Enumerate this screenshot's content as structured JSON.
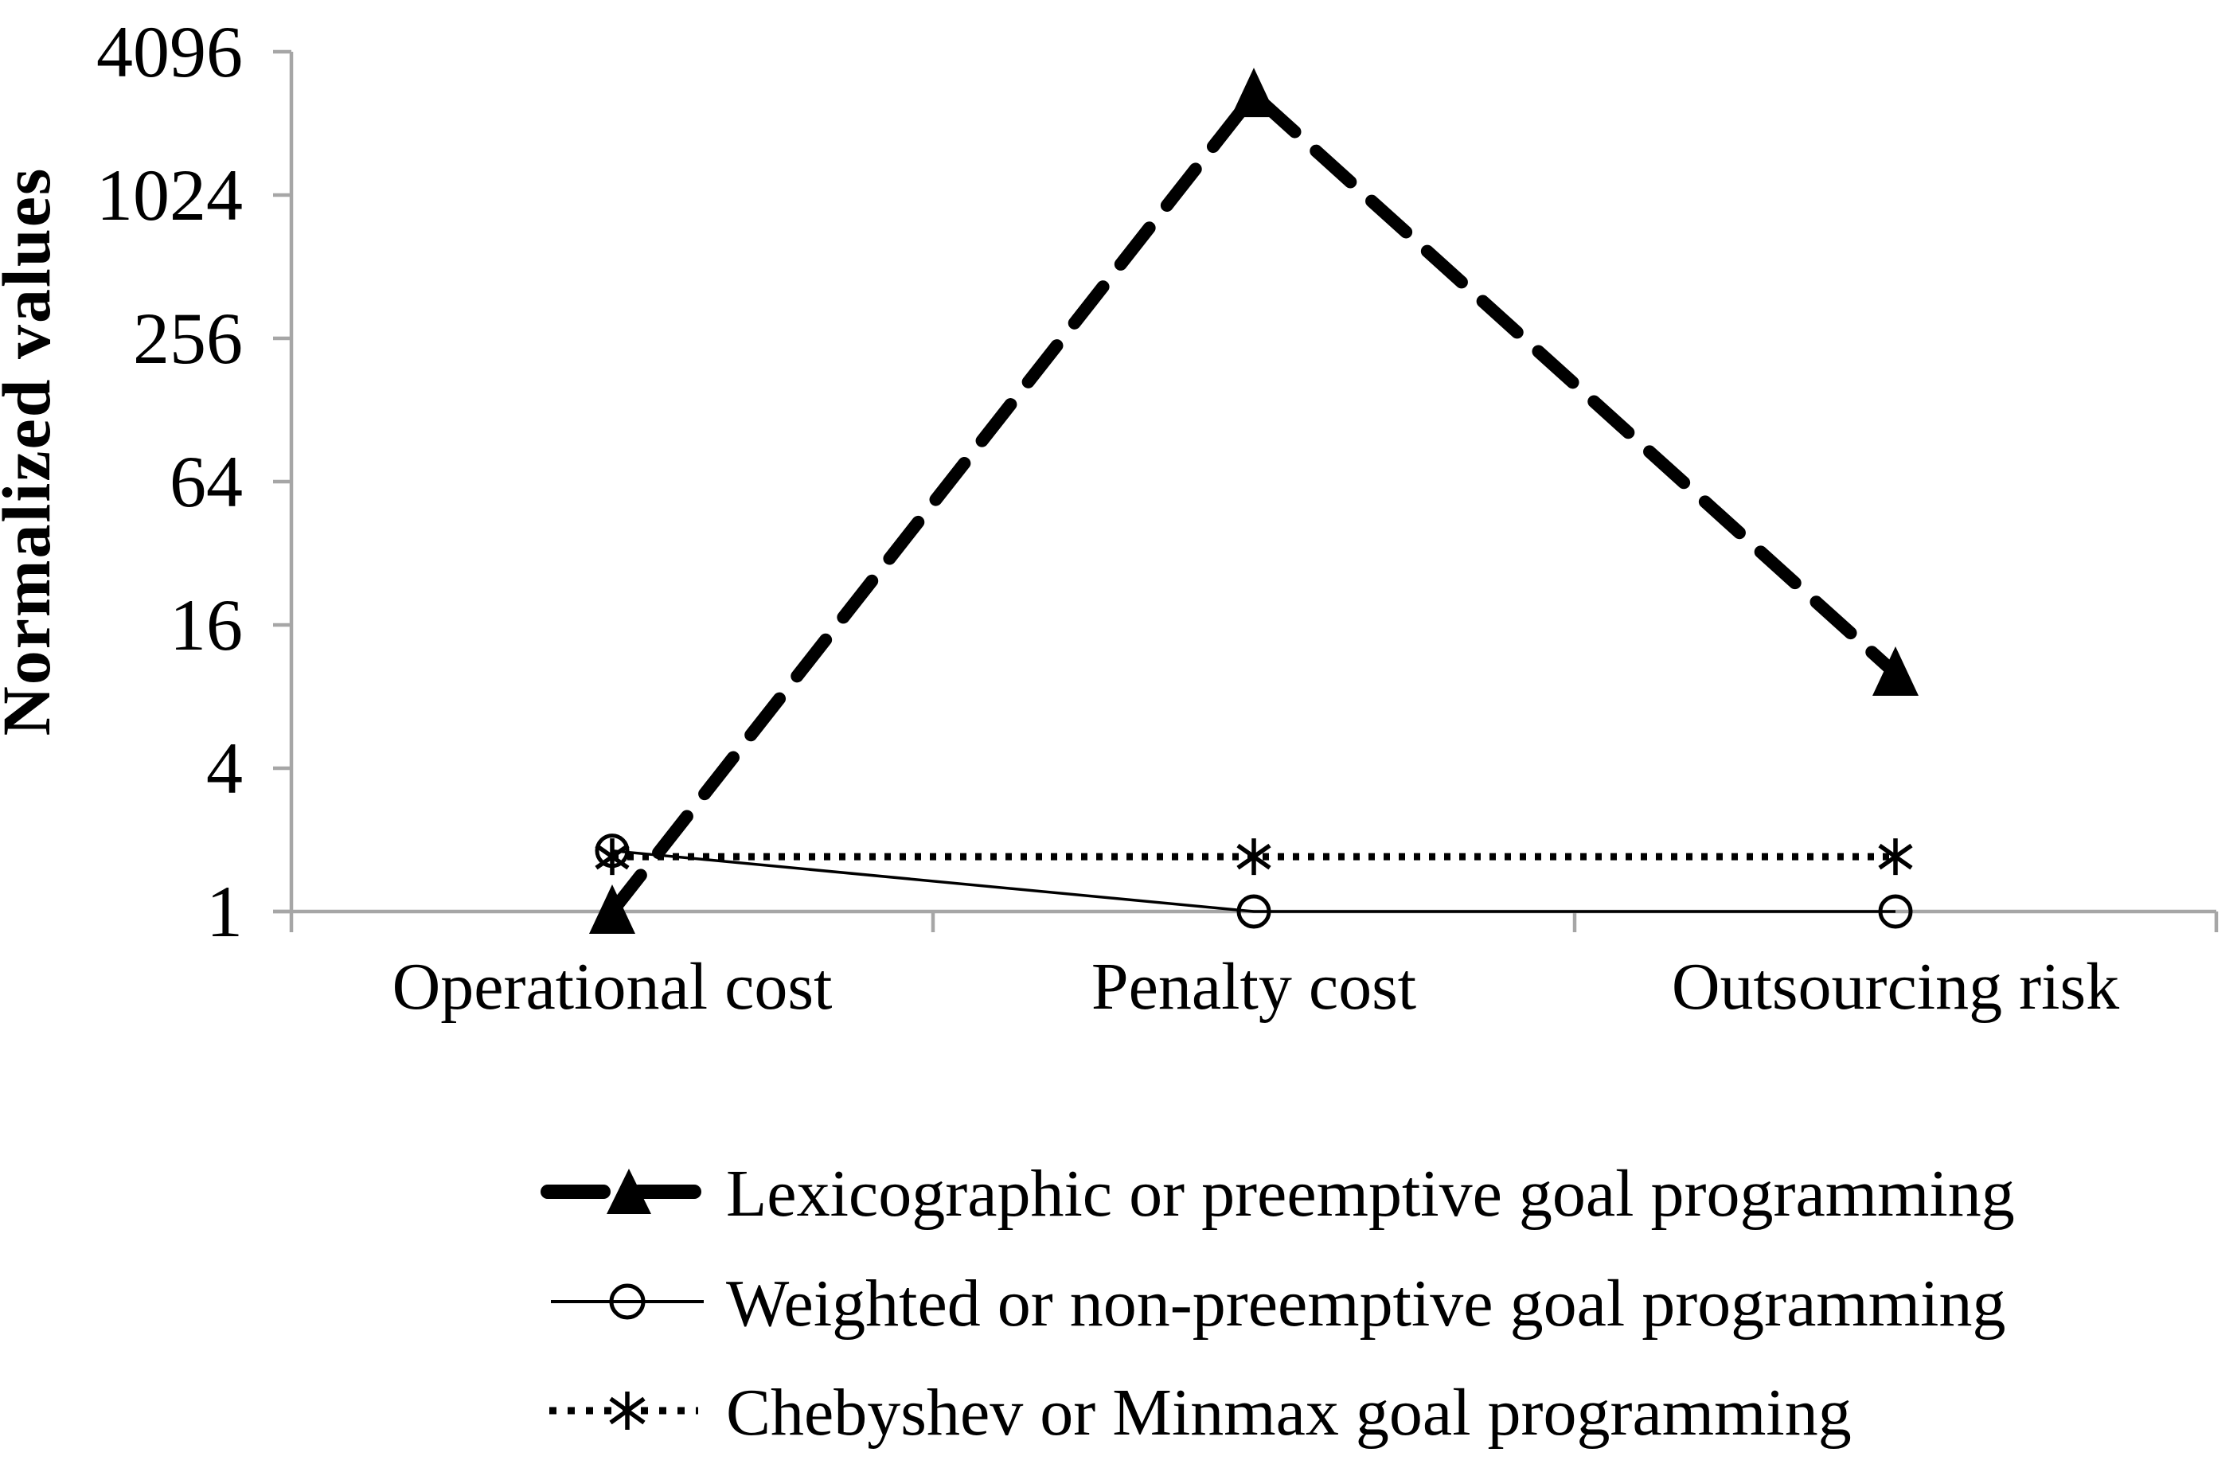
{
  "figure": {
    "background": "#ffffff"
  },
  "chart_data": {
    "type": "line",
    "title": "",
    "ylabel": "Normalized values",
    "xlabel": "",
    "categories": [
      "Operational cost",
      "Penalty cost",
      "Outsourcing risk"
    ],
    "y_scale": "log",
    "log_base": 4,
    "y_ticks": [
      1,
      4,
      16,
      64,
      256,
      1024,
      4096
    ],
    "ylim": [
      1,
      4096
    ],
    "grid": false,
    "legend_position": "bottom-left",
    "axis_color": "#a6a6a6",
    "series_color": "#000000",
    "series": [
      {
        "id": "lexicographic",
        "name": "Lexicographic or preemptive goal programming",
        "values": [
          1,
          2700,
          10
        ],
        "line_style": "thick-dashed",
        "marker": "filled-triangle",
        "z": 3
      },
      {
        "id": "weighted",
        "name": "Weighted or non-preemptive goal programming",
        "values": [
          1.8,
          1,
          1
        ],
        "line_style": "thin-solid",
        "marker": "open-circle",
        "z": 1
      },
      {
        "id": "chebyshev",
        "name": "Chebyshev or Minmax goal programming",
        "values": [
          1.7,
          1.7,
          1.7
        ],
        "line_style": "dotted",
        "marker": "asterisk",
        "z": 2
      }
    ]
  }
}
